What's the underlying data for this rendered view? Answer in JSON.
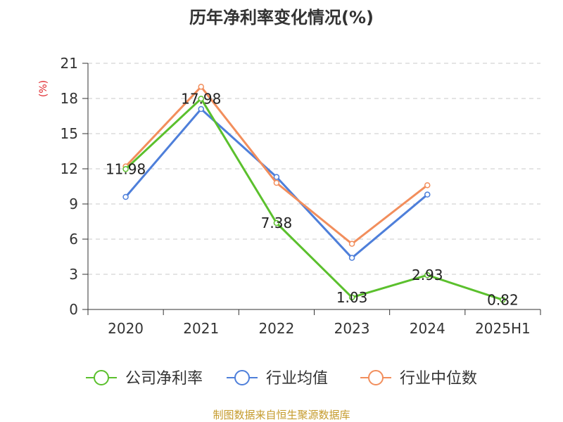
{
  "chart_data": {
    "type": "line",
    "title": "历年净利率变化情况(%)",
    "ylabel": "(%)",
    "xlabel": "",
    "categories": [
      "2020",
      "2021",
      "2022",
      "2023",
      "2024",
      "2025H1"
    ],
    "ylim": [
      0,
      21
    ],
    "yticks": [
      0,
      3,
      6,
      9,
      12,
      15,
      18,
      21
    ],
    "grid": true,
    "legend_position": "bottom",
    "series": [
      {
        "name": "公司净利率",
        "color": "#5BC02D",
        "values": [
          11.98,
          17.98,
          7.38,
          1.03,
          2.93,
          0.82
        ],
        "labels": [
          "11.98",
          "17.98",
          "7.38",
          "1.03",
          "2.93",
          "0.82"
        ]
      },
      {
        "name": "行业均值",
        "color": "#4E7FDA",
        "values": [
          9.6,
          17.1,
          11.3,
          4.4,
          9.8,
          null
        ]
      },
      {
        "name": "行业中位数",
        "color": "#F28E5C",
        "values": [
          12.2,
          19.0,
          10.8,
          5.6,
          10.6,
          null
        ]
      }
    ],
    "source": "制图数据来自恒生聚源数据库",
    "unit_color": "#E0262B",
    "source_color": "#C59B2C"
  }
}
